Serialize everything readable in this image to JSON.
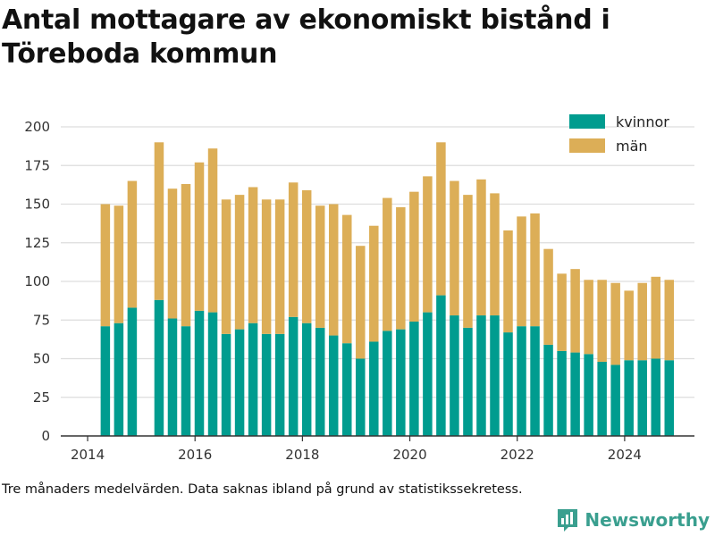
{
  "title": "Antal mottagare av ekonomiskt bistånd i Töreboda kommun",
  "note": "Tre månaders medelvärden. Data saknas ibland på grund av statistikssekretess.",
  "brand": "Newsworthy",
  "colors": {
    "kvinnor": "#009c8f",
    "man": "#dcae57",
    "grid": "#dddddd",
    "axis": "#333333",
    "brand": "#3a9f8f"
  },
  "chart_data": {
    "type": "bar",
    "stacked": true,
    "title": "Antal mottagare av ekonomiskt bistånd i Töreboda kommun",
    "xlabel": "",
    "ylabel": "",
    "ylim": [
      0,
      200
    ],
    "yticks": [
      0,
      25,
      50,
      75,
      100,
      125,
      150,
      175,
      200
    ],
    "xlim": [
      2013.5,
      2025.3
    ],
    "xticks": [
      2014,
      2016,
      2018,
      2020,
      2022,
      2024
    ],
    "grid": true,
    "legend_position": "top-right",
    "x": [
      2014.33,
      2014.58,
      2014.83,
      2015.33,
      2015.58,
      2015.83,
      2016.08,
      2016.33,
      2016.58,
      2016.83,
      2017.08,
      2017.33,
      2017.58,
      2017.83,
      2018.08,
      2018.33,
      2018.58,
      2018.83,
      2019.08,
      2019.33,
      2019.58,
      2019.83,
      2020.08,
      2020.33,
      2020.58,
      2020.83,
      2021.08,
      2021.33,
      2021.58,
      2021.83,
      2022.08,
      2022.33,
      2022.58,
      2022.83,
      2023.08,
      2023.33,
      2023.58,
      2023.83,
      2024.08,
      2024.33,
      2024.58,
      2024.83
    ],
    "series": [
      {
        "name": "kvinnor",
        "values": [
          71,
          73,
          83,
          88,
          76,
          71,
          81,
          80,
          66,
          69,
          73,
          66,
          66,
          77,
          73,
          70,
          65,
          60,
          50,
          61,
          68,
          69,
          74,
          80,
          91,
          78,
          70,
          78,
          78,
          67,
          71,
          71,
          59,
          55,
          54,
          53,
          48,
          46,
          49,
          49,
          50,
          49
        ]
      },
      {
        "name": "män",
        "values": [
          79,
          76,
          82,
          102,
          84,
          92,
          96,
          106,
          87,
          87,
          88,
          87,
          87,
          87,
          86,
          79,
          85,
          83,
          73,
          75,
          86,
          79,
          84,
          88,
          99,
          87,
          86,
          88,
          79,
          66,
          71,
          73,
          62,
          50,
          54,
          48,
          53,
          53,
          45,
          50,
          53,
          52
        ]
      }
    ]
  }
}
